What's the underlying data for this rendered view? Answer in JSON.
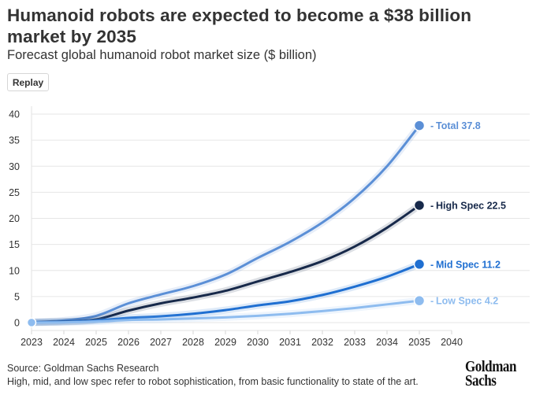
{
  "header": {
    "title": "Humanoid robots are expected to become a $38 billion market by 2035",
    "subtitle": "Forecast global humanoid robot market size ($ billion)",
    "replay_label": "Replay"
  },
  "footer": {
    "source": "Source: Goldman Sachs Research",
    "note": "High, mid, and low spec refer to robot sophistication, from basic functionality to state of the art.",
    "logo_line1": "Goldman",
    "logo_line2": "Sachs"
  },
  "chart_data": {
    "type": "line",
    "title": "Humanoid robots are expected to become a $38 billion market by 2035",
    "subtitle": "Forecast global humanoid robot market size ($ billion)",
    "xlabel": "",
    "ylabel": "",
    "x": [
      "2023",
      "2024",
      "2025",
      "2026",
      "2027",
      "2028",
      "2029",
      "2030",
      "2031",
      "2032",
      "2033",
      "2034",
      "2035"
    ],
    "x_ticks": [
      "2023",
      "2024",
      "2025",
      "2026",
      "2027",
      "2028",
      "2029",
      "2030",
      "2031",
      "2032",
      "2033",
      "2034",
      "2035",
      "2040"
    ],
    "y_ticks": [
      0,
      5,
      10,
      15,
      20,
      25,
      30,
      35,
      40
    ],
    "ylim": [
      0,
      40
    ],
    "grid": true,
    "legend": "end-labels-right",
    "series": [
      {
        "name": "Total",
        "end_label": "Total 37.8",
        "color": "#5b8fd6",
        "values": [
          0.1,
          0.4,
          1.3,
          3.7,
          5.4,
          7.0,
          9.2,
          12.4,
          15.5,
          19.2,
          23.9,
          30.0,
          37.8
        ]
      },
      {
        "name": "High Spec",
        "end_label": "High Spec 22.5",
        "color": "#17294a",
        "values": [
          0.05,
          0.2,
          0.6,
          2.3,
          3.7,
          4.8,
          6.1,
          7.9,
          9.7,
          11.8,
          14.6,
          18.2,
          22.5
        ]
      },
      {
        "name": "Mid Spec",
        "end_label": "Mid Spec 11.2",
        "color": "#1f6fd1",
        "values": [
          0.03,
          0.15,
          0.4,
          0.9,
          1.2,
          1.7,
          2.4,
          3.3,
          4.1,
          5.3,
          6.9,
          8.8,
          11.2
        ]
      },
      {
        "name": "Low Spec",
        "end_label": "Low Spec 4.2",
        "color": "#8ebcef",
        "values": [
          0.02,
          0.05,
          0.2,
          0.5,
          0.6,
          0.8,
          1.0,
          1.3,
          1.7,
          2.2,
          2.8,
          3.5,
          4.2
        ]
      }
    ]
  }
}
